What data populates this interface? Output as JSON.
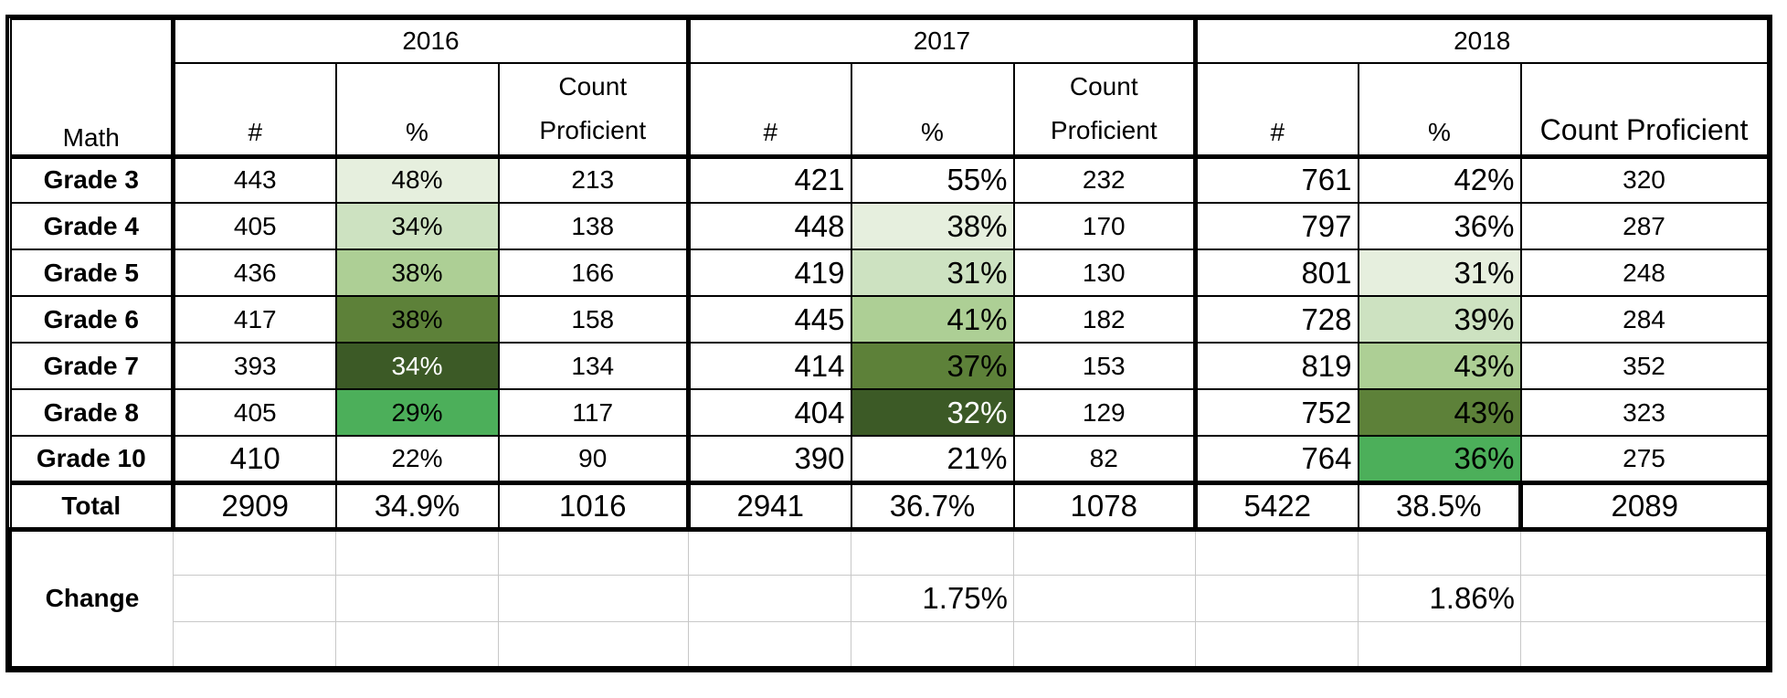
{
  "table": {
    "corner_label": "Math",
    "years": [
      "2016",
      "2017",
      "2018"
    ],
    "subheaders": {
      "y2016": [
        "#",
        "%",
        "Count\nProficient"
      ],
      "y2017": [
        "#",
        "%",
        "Count\nProficient"
      ],
      "y2018": [
        "#",
        "%",
        "Count Proficient"
      ]
    },
    "rows": [
      {
        "label": "Grade 3",
        "y2016": {
          "n": "443",
          "pct": "48%",
          "count": "213"
        },
        "y2017": {
          "n": "421",
          "pct": "55%",
          "count": "232"
        },
        "y2018": {
          "n": "761",
          "pct": "42%",
          "count": "320"
        }
      },
      {
        "label": "Grade 4",
        "y2016": {
          "n": "405",
          "pct": "34%",
          "count": "138"
        },
        "y2017": {
          "n": "448",
          "pct": "38%",
          "count": "170"
        },
        "y2018": {
          "n": "797",
          "pct": "36%",
          "count": "287"
        }
      },
      {
        "label": "Grade 5",
        "y2016": {
          "n": "436",
          "pct": "38%",
          "count": "166"
        },
        "y2017": {
          "n": "419",
          "pct": "31%",
          "count": "130"
        },
        "y2018": {
          "n": "801",
          "pct": "31%",
          "count": "248"
        }
      },
      {
        "label": "Grade 6",
        "y2016": {
          "n": "417",
          "pct": "38%",
          "count": "158"
        },
        "y2017": {
          "n": "445",
          "pct": "41%",
          "count": "182"
        },
        "y2018": {
          "n": "728",
          "pct": "39%",
          "count": "284"
        }
      },
      {
        "label": "Grade 7",
        "y2016": {
          "n": "393",
          "pct": "34%",
          "count": "134"
        },
        "y2017": {
          "n": "414",
          "pct": "37%",
          "count": "153"
        },
        "y2018": {
          "n": "819",
          "pct": "43%",
          "count": "352"
        }
      },
      {
        "label": "Grade 8",
        "y2016": {
          "n": "405",
          "pct": "29%",
          "count": "117"
        },
        "y2017": {
          "n": "404",
          "pct": "32%",
          "count": "129"
        },
        "y2018": {
          "n": "752",
          "pct": "43%",
          "count": "323"
        }
      },
      {
        "label": "Grade 10",
        "y2016": {
          "n": "410",
          "pct": "22%",
          "count": "90"
        },
        "y2017": {
          "n": "390",
          "pct": "21%",
          "count": "82"
        },
        "y2018": {
          "n": "764",
          "pct": "36%",
          "count": "275"
        }
      }
    ],
    "total": {
      "label": "Total",
      "y2016": {
        "n": "2909",
        "pct": "34.9%",
        "count": "1016"
      },
      "y2017": {
        "n": "2941",
        "pct": "36.7%",
        "count": "1078"
      },
      "y2018": {
        "n": "5422",
        "pct": "38.5%",
        "count": "2089"
      }
    },
    "change": {
      "label": "Change",
      "y2017_pct": "1.75%",
      "y2018_pct": "1.86%"
    },
    "heatmap_colors": {
      "pale": "#e6efde",
      "light": "#cde2c1",
      "medium": "#adcf95",
      "dark": "#5d8139",
      "darkest": "#3c5a26",
      "bright": "#4caf5a"
    }
  }
}
